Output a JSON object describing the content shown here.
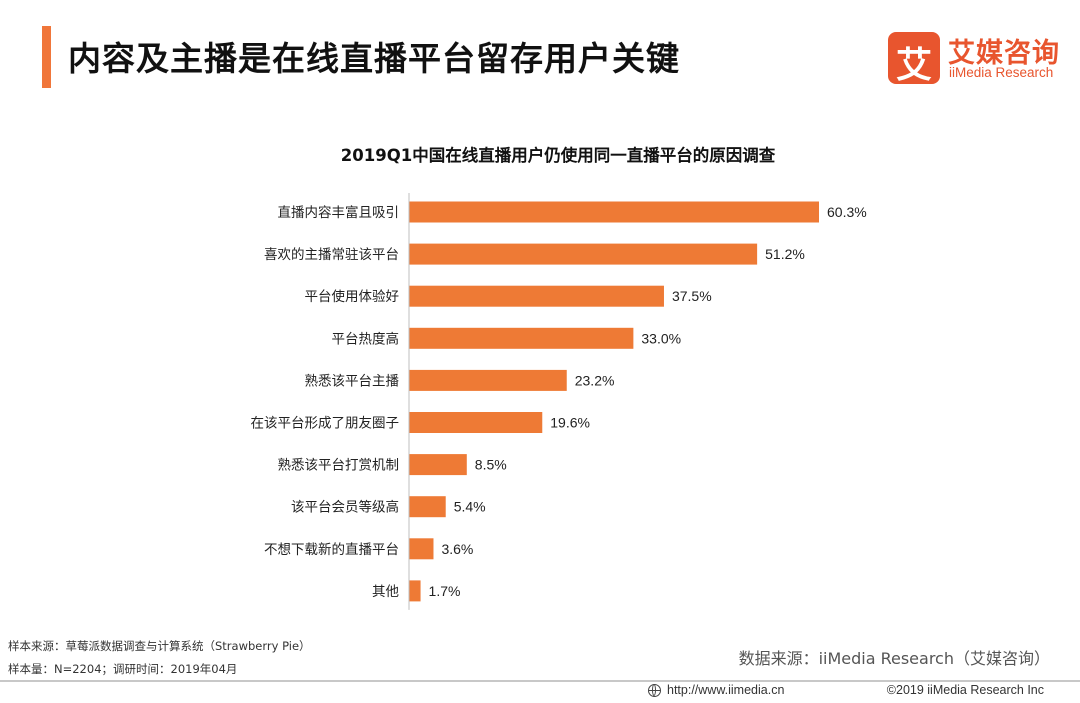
{
  "header": {
    "title": "内容及主播是在线直播平台留存用户关键",
    "accent_color": "#f0763a"
  },
  "logo": {
    "mark_char": "艾",
    "name_cn": "艾媒咨询",
    "name_en": "iiMedia Research",
    "color": "#e8552e"
  },
  "chart_data": {
    "type": "bar",
    "orientation": "horizontal",
    "title": "2019Q1中国在线直播用户仍使用同一直播平台的原因调查",
    "unit": "%",
    "bar_color": "#ee7a35",
    "categories": [
      "直播内容丰富且吸引",
      "喜欢的主播常驻该平台",
      "平台使用体验好",
      "平台热度高",
      "熟悉该平台主播",
      "在该平台形成了朋友圈子",
      "熟悉该平台打赏机制",
      "该平台会员等级高",
      "不想下载新的直播平台",
      "其他"
    ],
    "values": [
      60.3,
      51.2,
      37.5,
      33.0,
      23.2,
      19.6,
      8.5,
      5.4,
      3.6,
      1.7
    ],
    "value_labels": [
      "60.3%",
      "51.2%",
      "37.5%",
      "33.0%",
      "23.2%",
      "19.6%",
      "8.5%",
      "5.4%",
      "3.6%",
      "1.7%"
    ],
    "xlim": [
      0,
      60.3
    ],
    "grid": false,
    "legend": "none"
  },
  "notes": {
    "sample_source": "样本来源：草莓派数据调查与计算系统（Strawberry Pie）",
    "sample_size": "样本量：N=2204；调研时间：2019年04月"
  },
  "source": "数据来源：iiMedia Research（艾媒咨询）",
  "footer": {
    "url": "http://www.iimedia.cn",
    "copyright": "©2019 iiMedia Research Inc"
  }
}
